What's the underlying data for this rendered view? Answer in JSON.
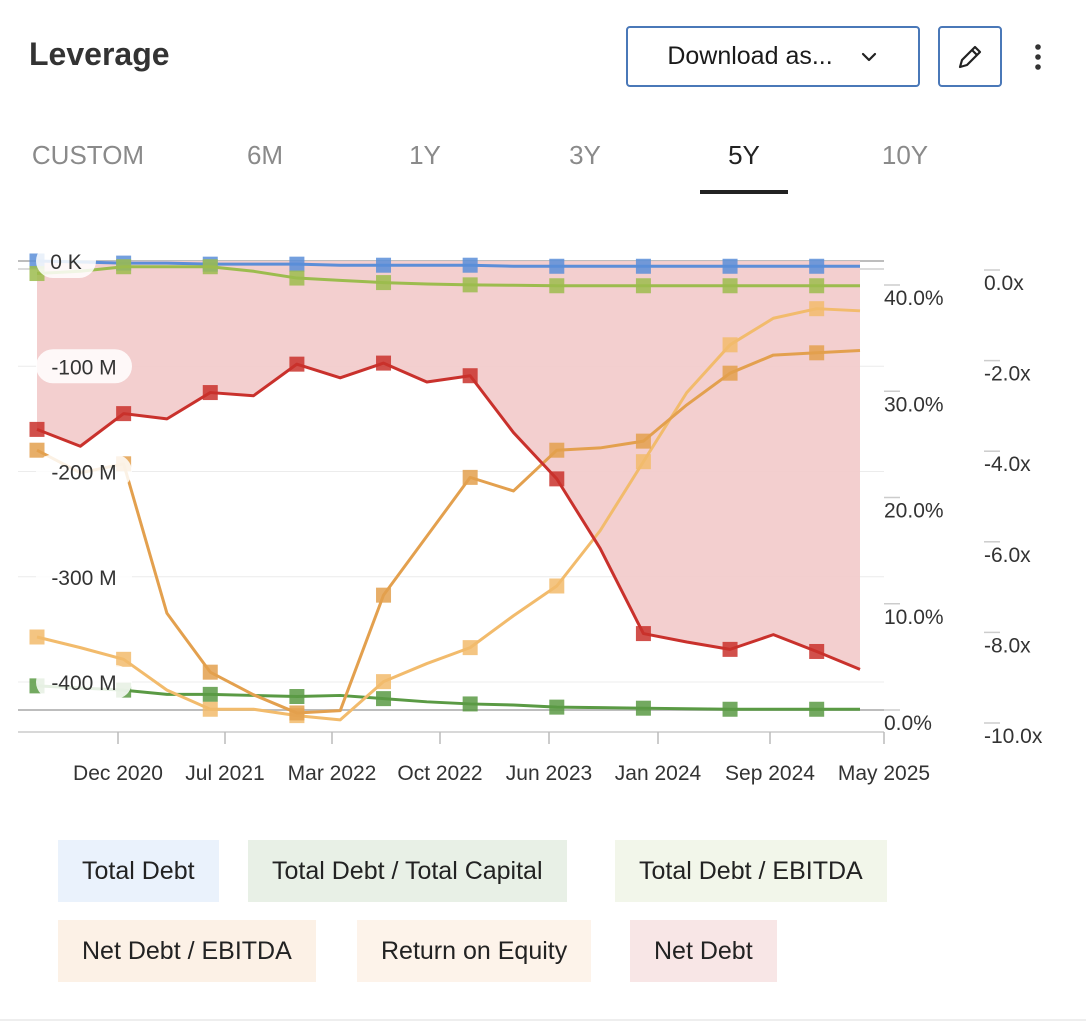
{
  "header": {
    "title": "Leverage",
    "download_label": "Download as...",
    "icons": {
      "download": "chevron-down-icon",
      "edit": "pencil-icon",
      "more": "more-vertical-icon"
    }
  },
  "tabs": [
    {
      "label": "CUSTOM",
      "active": false
    },
    {
      "label": "6M",
      "active": false
    },
    {
      "label": "1Y",
      "active": false
    },
    {
      "label": "3Y",
      "active": false
    },
    {
      "label": "5Y",
      "active": true
    },
    {
      "label": "10Y",
      "active": false
    }
  ],
  "legend": [
    {
      "label": "Total Debt",
      "color": "#eaf2fc"
    },
    {
      "label": "Total Debt / Total Capital",
      "color": "#e8f0e6"
    },
    {
      "label": "Total Debt / EBITDA",
      "color": "#f2f6ea"
    },
    {
      "label": "Net Debt / EBITDA",
      "color": "#fcf1e6"
    },
    {
      "label": "Return on Equity",
      "color": "#fdf3ea"
    },
    {
      "label": "Net Debt",
      "color": "#f8e6e6"
    }
  ],
  "chart_data": {
    "type": "line",
    "x_tick_labels": [
      "Dec 2020",
      "Jul 2021",
      "Mar 2022",
      "Oct 2022",
      "Jun 2023",
      "Jan 2024",
      "Sep 2024",
      "May 2025"
    ],
    "y_left": {
      "tick_labels": [
        "0 K",
        "-100 M",
        "-200 M",
        "-300 M",
        "-400 M"
      ],
      "ticks": [
        0,
        -100,
        -200,
        -300,
        -400
      ],
      "range": [
        -430,
        10
      ],
      "unit": "M"
    },
    "y_right_pct": {
      "tick_labels": [
        "40.0%",
        "30.0%",
        "20.0%",
        "10.0%",
        "0.0%"
      ],
      "ticks": [
        40,
        30,
        20,
        10,
        0
      ],
      "range": [
        0,
        42
      ]
    },
    "y_right_x": {
      "tick_labels": [
        "0.0x",
        "-2.0x",
        "-4.0x",
        "-6.0x",
        "-8.0x",
        "-10.0x"
      ],
      "ticks": [
        0,
        -2,
        -4,
        -6,
        -8,
        -10
      ],
      "range": [
        -10,
        0
      ]
    },
    "t": [
      0,
      0.5,
      1,
      1.5,
      2,
      2.5,
      3,
      3.5,
      4,
      4.5,
      5,
      5.5,
      6,
      6.5,
      7,
      7.5,
      8,
      8.5,
      9,
      9.5
    ],
    "series": [
      {
        "name": "Net Debt",
        "axis": "left",
        "color": "#c9312c",
        "fill": "#f2cccc",
        "values": [
          -160,
          -176,
          -145,
          -150,
          -125,
          -128,
          -98,
          -111,
          -97,
          -115,
          -109,
          -163,
          -207,
          -273,
          -354,
          -362,
          -369,
          -355,
          -371,
          -388
        ],
        "markers": [
          0,
          2,
          4,
          6,
          8,
          10,
          12,
          14,
          16,
          18
        ]
      },
      {
        "name": "Total Debt",
        "axis": "left",
        "color": "#5b8ed8",
        "values": [
          0,
          -1,
          -2,
          -2,
          -3,
          -3,
          -3,
          -4,
          -4,
          -4,
          -4,
          -5,
          -5,
          -5,
          -5,
          -5,
          -5,
          -5,
          -5,
          -5
        ],
        "markers": [
          0,
          2,
          4,
          6,
          8,
          10,
          12,
          14,
          16,
          18
        ]
      },
      {
        "name": "Total Debt / EBITDA",
        "axis": "right_x",
        "color": "#9cbc4e",
        "values": [
          -0.1,
          -0.05,
          0.05,
          0.05,
          0.05,
          -0.05,
          -0.2,
          -0.25,
          -0.3,
          -0.33,
          -0.35,
          -0.36,
          -0.37,
          -0.37,
          -0.37,
          -0.37,
          -0.37,
          -0.37,
          -0.37,
          -0.37
        ],
        "markers": [
          0,
          2,
          4,
          6,
          8,
          10,
          12,
          14,
          16,
          18
        ]
      },
      {
        "name": "Total Debt / Total Capital",
        "axis": "right_pct",
        "color": "#5a9a44",
        "values": [
          3.4,
          3.2,
          3.0,
          2.6,
          2.6,
          2.5,
          2.4,
          2.5,
          2.2,
          1.9,
          1.7,
          1.6,
          1.4,
          1.35,
          1.3,
          1.25,
          1.2,
          1.2,
          1.2,
          1.2
        ],
        "markers": [
          0,
          2,
          4,
          6,
          8,
          10,
          12,
          14,
          16,
          18
        ]
      },
      {
        "name": "Return on Equity",
        "axis": "right_pct",
        "color": "#f2bb6c",
        "values": [
          8.0,
          7.0,
          5.9,
          3.0,
          1.2,
          1.2,
          0.6,
          0.2,
          3.8,
          5.5,
          7.0,
          10.0,
          12.8,
          18.0,
          24.5,
          31.0,
          35.5,
          38.0,
          38.9,
          38.7
        ],
        "markers": [
          0,
          2,
          4,
          6,
          8,
          10,
          12,
          14,
          16,
          18
        ]
      },
      {
        "name": "Net Debt / EBITDA",
        "axis": "right_x",
        "color": "#e3a04e",
        "values": [
          -4.0,
          -4.5,
          -4.3,
          -7.6,
          -8.9,
          -9.4,
          -9.8,
          -9.75,
          -7.2,
          -5.9,
          -4.6,
          -4.9,
          -4.0,
          -3.95,
          -3.8,
          -3.0,
          -2.3,
          -1.9,
          -1.85,
          -1.8
        ],
        "markers": [
          0,
          2,
          4,
          6,
          8,
          10,
          12,
          14,
          16,
          18
        ]
      }
    ]
  }
}
